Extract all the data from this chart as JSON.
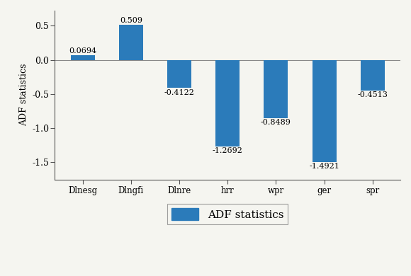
{
  "categories": [
    "Dlnesg",
    "Dlngfi",
    "Dlnre",
    "hrr",
    "wpr",
    "ger",
    "spr"
  ],
  "values": [
    0.0694,
    0.509,
    -0.4122,
    -1.2692,
    -0.8489,
    -1.4921,
    -0.4513
  ],
  "bar_color": "#2b7bba",
  "ylabel": "ADF statistics",
  "ylim": [
    -1.75,
    0.72
  ],
  "yticks": [
    -1.5,
    -1.0,
    -0.5,
    0.0,
    0.5
  ],
  "ytick_labels": [
    "-1.5",
    "-1.0",
    "-0.5",
    "0.0",
    "0.5"
  ],
  "legend_label": "ADF statistics",
  "bar_width": 0.5,
  "value_labels": [
    "0.0694",
    "0.509",
    "-0.4122",
    "-1.2692",
    "-0.8489",
    "-1.4921",
    "-0.4513"
  ],
  "fig_width": 5.8,
  "fig_height": 3.9,
  "background_color": "#f5f5f0"
}
